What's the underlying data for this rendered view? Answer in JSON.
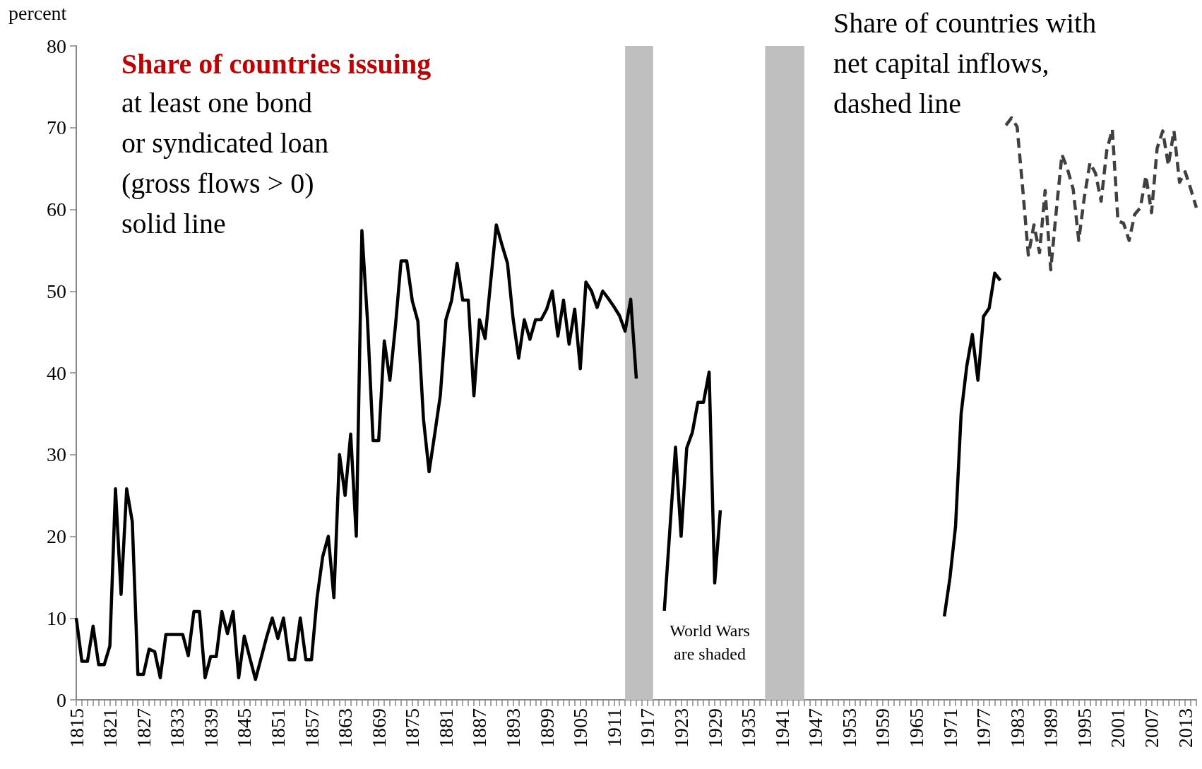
{
  "chart_data": {
    "type": "line",
    "ylabel": "percent",
    "annotations": [
      "Share of countries issuing",
      "at least one bond\nor syndicated loan\n(gross flows > 0)\nsolid line",
      "Share of countries with\nnet capital inflows,\ndashed line",
      "World Wars\nare shaded"
    ],
    "series": [
      {
        "color": "#000000",
        "line_style": "solid",
        "x": [
          1815,
          1816,
          1817,
          1818,
          1819,
          1820,
          1821,
          1822,
          1823,
          1824,
          1825,
          1826,
          1827,
          1828,
          1829,
          1830,
          1831,
          1832,
          1833,
          1834,
          1835,
          1836,
          1837,
          1838,
          1839,
          1840,
          1841,
          1842,
          1843,
          1844,
          1845,
          1846,
          1847,
          1848,
          1849,
          1850,
          1851,
          1852,
          1853,
          1854,
          1855,
          1856,
          1857,
          1858,
          1859,
          1860,
          1861,
          1862,
          1863,
          1864,
          1865,
          1866,
          1867,
          1868,
          1869,
          1870,
          1871,
          1872,
          1873,
          1874,
          1875,
          1876,
          1877,
          1878,
          1879,
          1880,
          1881,
          1882,
          1883,
          1884,
          1885,
          1886,
          1887,
          1888,
          1889,
          1890,
          1891,
          1892,
          1893,
          1894,
          1895,
          1896,
          1897,
          1898,
          1899,
          1900,
          1901,
          1902,
          1903,
          1904,
          1905,
          1906,
          1907,
          1908,
          1909,
          1910,
          1911,
          1912,
          1913,
          1914,
          1915,
          1916,
          1920,
          1921,
          1922,
          1923,
          1924,
          1925,
          1926,
          1927,
          1928,
          1929,
          1930,
          1931,
          1970,
          1971,
          1972,
          1973,
          1974,
          1975,
          1976,
          1977,
          1978,
          1979,
          1980
        ],
        "values": [
          10,
          4.7,
          4.7,
          9,
          4.3,
          4.3,
          6.6,
          25.8,
          12.9,
          25.8,
          21.8,
          3.1,
          3.1,
          6.2,
          5.9,
          2.7,
          8,
          8,
          8,
          8,
          5.4,
          10.8,
          10.8,
          2.7,
          5.3,
          5.3,
          10.8,
          8.1,
          10.8,
          2.7,
          7.8,
          5.1,
          2.5,
          5.1,
          7.7,
          10,
          7.5,
          10,
          4.9,
          4.9,
          10,
          4.9,
          4.9,
          12.5,
          17.5,
          20,
          12.5,
          30,
          25,
          32.5,
          20,
          57.4,
          46.4,
          31.7,
          31.7,
          43.9,
          39.1,
          45.8,
          53.7,
          53.7,
          48.8,
          46.3,
          34.3,
          27.9,
          32.5,
          37.2,
          46.5,
          48.8,
          53.4,
          48.9,
          48.9,
          37.2,
          46.5,
          44.2,
          51.2,
          58.1,
          55.7,
          53.4,
          46.6,
          41.8,
          46.5,
          44.1,
          46.5,
          46.5,
          47.8,
          50,
          44.5,
          48.9,
          43.5,
          47.8,
          40.5,
          51.1,
          50,
          48,
          50,
          49.1,
          48.1,
          47,
          45.1,
          49,
          39.3,
          null,
          10.9,
          20.9,
          30.9,
          20,
          30.8,
          32.7,
          36.4,
          36.4,
          40.1,
          14.3,
          23.2,
          null,
          10.2,
          14.9,
          21.2,
          35,
          40.8,
          44.7,
          39.1,
          46.9,
          47.9,
          52.2,
          51.3
        ]
      },
      {
        "color": "#404040",
        "line_style": "dashed",
        "x": [
          1981,
          1982,
          1983,
          1984,
          1985,
          1986,
          1987,
          1988,
          1989,
          1990,
          1991,
          1992,
          1993,
          1994,
          1995,
          1996,
          1997,
          1998,
          1999,
          2000,
          2001,
          2002,
          2003,
          2004,
          2005,
          2006,
          2007,
          2008,
          2009,
          2010,
          2011,
          2012,
          2013,
          2014,
          2015
        ],
        "values": [
          70.3,
          71.2,
          70.1,
          62.5,
          54.4,
          58.1,
          54.7,
          62.3,
          52.6,
          59.9,
          66.7,
          64.9,
          62.5,
          56.2,
          61.5,
          65.7,
          64.4,
          61,
          67.2,
          69.8,
          58.6,
          58.3,
          56.2,
          59.4,
          60.2,
          64.1,
          59.6,
          67.5,
          69.6,
          65.4,
          69.6,
          63.3,
          64.6,
          62.5,
          60.2
        ]
      }
    ],
    "bands": [
      {
        "axis": "x",
        "from": 1913,
        "to": 1918,
        "color": "#bfbfbf"
      },
      {
        "axis": "x",
        "from": 1938,
        "to": 1945,
        "color": "#bfbfbf"
      }
    ],
    "xlim": [
      1815,
      2015
    ],
    "xticks": [
      1815,
      {
        "value": 1816,
        "label": null
      },
      {
        "value": 1817,
        "label": null
      },
      {
        "value": 1818,
        "label": null
      },
      {
        "value": 1819,
        "label": null
      },
      {
        "value": 1820,
        "label": null
      },
      1821,
      {
        "value": 1822,
        "label": null
      },
      {
        "value": 1823,
        "label": null
      },
      {
        "value": 1824,
        "label": null
      },
      {
        "value": 1825,
        "label": null
      },
      {
        "value": 1826,
        "label": null
      },
      1827,
      {
        "value": 1828,
        "label": null
      },
      {
        "value": 1829,
        "label": null
      },
      {
        "value": 1830,
        "label": null
      },
      {
        "value": 1831,
        "label": null
      },
      {
        "value": 1832,
        "label": null
      },
      1833,
      {
        "value": 1834,
        "label": null
      },
      {
        "value": 1835,
        "label": null
      },
      {
        "value": 1836,
        "label": null
      },
      {
        "value": 1837,
        "label": null
      },
      {
        "value": 1838,
        "label": null
      },
      1839,
      {
        "value": 1840,
        "label": null
      },
      {
        "value": 1841,
        "label": null
      },
      {
        "value": 1842,
        "label": null
      },
      {
        "value": 1843,
        "label": null
      },
      {
        "value": 1844,
        "label": null
      },
      1845,
      {
        "value": 1846,
        "label": null
      },
      {
        "value": 1847,
        "label": null
      },
      {
        "value": 1848,
        "label": null
      },
      {
        "value": 1849,
        "label": null
      },
      {
        "value": 1850,
        "label": null
      },
      1851,
      {
        "value": 1852,
        "label": null
      },
      {
        "value": 1853,
        "label": null
      },
      {
        "value": 1854,
        "label": null
      },
      {
        "value": 1855,
        "label": null
      },
      {
        "value": 1856,
        "label": null
      },
      1857,
      {
        "value": 1858,
        "label": null
      },
      {
        "value": 1859,
        "label": null
      },
      {
        "value": 1860,
        "label": null
      },
      {
        "value": 1861,
        "label": null
      },
      {
        "value": 1862,
        "label": null
      },
      1863,
      {
        "value": 1864,
        "label": null
      },
      {
        "value": 1865,
        "label": null
      },
      {
        "value": 1866,
        "label": null
      },
      {
        "value": 1867,
        "label": null
      },
      {
        "value": 1868,
        "label": null
      },
      1869,
      {
        "value": 1870,
        "label": null
      },
      {
        "value": 1871,
        "label": null
      },
      {
        "value": 1872,
        "label": null
      },
      {
        "value": 1873,
        "label": null
      },
      {
        "value": 1874,
        "label": null
      },
      1875,
      {
        "value": 1876,
        "label": null
      },
      {
        "value": 1877,
        "label": null
      },
      {
        "value": 1878,
        "label": null
      },
      {
        "value": 1879,
        "label": null
      },
      {
        "value": 1880,
        "label": null
      },
      1881,
      {
        "value": 1882,
        "label": null
      },
      {
        "value": 1883,
        "label": null
      },
      {
        "value": 1884,
        "label": null
      },
      {
        "value": 1885,
        "label": null
      },
      {
        "value": 1886,
        "label": null
      },
      1887,
      {
        "value": 1888,
        "label": null
      },
      {
        "value": 1889,
        "label": null
      },
      {
        "value": 1890,
        "label": null
      },
      {
        "value": 1891,
        "label": null
      },
      {
        "value": 1892,
        "label": null
      },
      1893,
      {
        "value": 1894,
        "label": null
      },
      {
        "value": 1895,
        "label": null
      },
      {
        "value": 1896,
        "label": null
      },
      {
        "value": 1897,
        "label": null
      },
      {
        "value": 1898,
        "label": null
      },
      1899,
      {
        "value": 1900,
        "label": null
      },
      {
        "value": 1901,
        "label": null
      },
      {
        "value": 1902,
        "label": null
      },
      {
        "value": 1903,
        "label": null
      },
      {
        "value": 1904,
        "label": null
      },
      1905,
      {
        "value": 1906,
        "label": null
      },
      {
        "value": 1907,
        "label": null
      },
      {
        "value": 1908,
        "label": null
      },
      {
        "value": 1909,
        "label": null
      },
      {
        "value": 1910,
        "label": null
      },
      1911,
      {
        "value": 1912,
        "label": null
      },
      {
        "value": 1913,
        "label": null
      },
      {
        "value": 1914,
        "label": null
      },
      {
        "value": 1915,
        "label": null
      },
      {
        "value": 1916,
        "label": null
      },
      1917,
      {
        "value": 1918,
        "label": null
      },
      {
        "value": 1919,
        "label": null
      },
      {
        "value": 1920,
        "label": null
      },
      {
        "value": 1921,
        "label": null
      },
      {
        "value": 1922,
        "label": null
      },
      1923,
      {
        "value": 1924,
        "label": null
      },
      {
        "value": 1925,
        "label": null
      },
      {
        "value": 1926,
        "label": null
      },
      {
        "value": 1927,
        "label": null
      },
      {
        "value": 1928,
        "label": null
      },
      1929,
      {
        "value": 1930,
        "label": null
      },
      {
        "value": 1931,
        "label": null
      },
      {
        "value": 1932,
        "label": null
      },
      {
        "value": 1933,
        "label": null
      },
      {
        "value": 1934,
        "label": null
      },
      1935,
      {
        "value": 1936,
        "label": null
      },
      {
        "value": 1937,
        "label": null
      },
      {
        "value": 1938,
        "label": null
      },
      {
        "value": 1939,
        "label": null
      },
      {
        "value": 1940,
        "label": null
      },
      1941,
      {
        "value": 1942,
        "label": null
      },
      {
        "value": 1943,
        "label": null
      },
      {
        "value": 1944,
        "label": null
      },
      {
        "value": 1945,
        "label": null
      },
      {
        "value": 1946,
        "label": null
      },
      1947,
      {
        "value": 1948,
        "label": null
      },
      {
        "value": 1949,
        "label": null
      },
      {
        "value": 1950,
        "label": null
      },
      {
        "value": 1951,
        "label": null
      },
      {
        "value": 1952,
        "label": null
      },
      1953,
      {
        "value": 1954,
        "label": null
      },
      {
        "value": 1955,
        "label": null
      },
      {
        "value": 1956,
        "label": null
      },
      {
        "value": 1957,
        "label": null
      },
      {
        "value": 1958,
        "label": null
      },
      1959,
      {
        "value": 1960,
        "label": null
      },
      {
        "value": 1961,
        "label": null
      },
      {
        "value": 1962,
        "label": null
      },
      {
        "value": 1963,
        "label": null
      },
      {
        "value": 1964,
        "label": null
      },
      1965,
      {
        "value": 1966,
        "label": null
      },
      {
        "value": 1967,
        "label": null
      },
      {
        "value": 1968,
        "label": null
      },
      {
        "value": 1969,
        "label": null
      },
      {
        "value": 1970,
        "label": null
      },
      1971,
      {
        "value": 1972,
        "label": null
      },
      {
        "value": 1973,
        "label": null
      },
      {
        "value": 1974,
        "label": null
      },
      {
        "value": 1975,
        "label": null
      },
      {
        "value": 1976,
        "label": null
      },
      1977,
      {
        "value": 1978,
        "label": null
      },
      {
        "value": 1979,
        "label": null
      },
      {
        "value": 1980,
        "label": null
      },
      {
        "value": 1981,
        "label": null
      },
      {
        "value": 1982,
        "label": null
      },
      1983,
      {
        "value": 1984,
        "label": null
      },
      {
        "value": 1985,
        "label": null
      },
      {
        "value": 1986,
        "label": null
      },
      {
        "value": 1987,
        "label": null
      },
      {
        "value": 1988,
        "label": null
      },
      1989,
      {
        "value": 1990,
        "label": null
      },
      {
        "value": 1991,
        "label": null
      },
      {
        "value": 1992,
        "label": null
      },
      {
        "value": 1993,
        "label": null
      },
      {
        "value": 1994,
        "label": null
      },
      1995,
      {
        "value": 1996,
        "label": null
      },
      {
        "value": 1997,
        "label": null
      },
      {
        "value": 1998,
        "label": null
      },
      {
        "value": 1999,
        "label": null
      },
      {
        "value": 2000,
        "label": null
      },
      2001,
      {
        "value": 2002,
        "label": null
      },
      {
        "value": 2003,
        "label": null
      },
      {
        "value": 2004,
        "label": null
      },
      {
        "value": 2005,
        "label": null
      },
      {
        "value": 2006,
        "label": null
      },
      2007,
      {
        "value": 2008,
        "label": null
      },
      {
        "value": 2009,
        "label": null
      },
      {
        "value": 2010,
        "label": null
      },
      {
        "value": 2011,
        "label": null
      },
      {
        "value": 2012,
        "label": null
      },
      2013,
      {
        "value": 2014,
        "label": null
      },
      {
        "value": 2015,
        "label": null
      }
    ],
    "ylim": [
      0,
      80
    ],
    "yticks": [
      0,
      10,
      20,
      30,
      40,
      50,
      60,
      70,
      80
    ],
    "grid": false,
    "marker": "none"
  }
}
